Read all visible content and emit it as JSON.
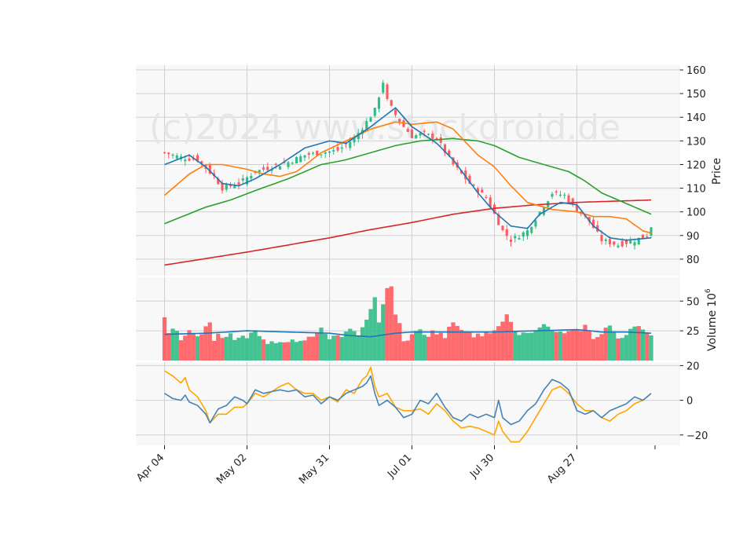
{
  "chart_data": {
    "type": "candlestick",
    "watermark": "(c)2024 www.stockdroid.de",
    "colors": {
      "up": "#2ebd85",
      "down": "#ff5a5f",
      "ma_short": "#1f77b4",
      "ma_mid": "#ff7f0e",
      "ma_long": "#2ca02c",
      "ma_200": "#d62728",
      "vol_ma": "#1f77b4",
      "osc1": "#4682b4",
      "osc2": "#ffa500"
    },
    "x_tick_labels": [
      "Apr 04",
      "May 02",
      "May 31",
      "Jul 01",
      "Jul 30",
      "Aug 27"
    ],
    "x_tick_index": [
      0,
      20,
      40,
      60,
      80,
      100
    ],
    "n_bars": 119,
    "price_panel": {
      "ylabel": "Price",
      "ylim": [
        73,
        162
      ],
      "yticks": [
        80,
        90,
        100,
        110,
        120,
        130,
        140,
        150,
        160
      ],
      "close_anchors": [
        [
          0,
          125
        ],
        [
          4,
          123
        ],
        [
          8,
          122
        ],
        [
          12,
          115
        ],
        [
          14,
          110
        ],
        [
          18,
          112
        ],
        [
          22,
          117
        ],
        [
          26,
          119
        ],
        [
          30,
          121
        ],
        [
          34,
          124
        ],
        [
          38,
          125
        ],
        [
          42,
          126
        ],
        [
          46,
          131
        ],
        [
          49,
          138
        ],
        [
          51,
          143
        ],
        [
          53,
          155
        ],
        [
          54,
          147
        ],
        [
          56,
          141
        ],
        [
          58,
          136
        ],
        [
          60,
          132
        ],
        [
          63,
          133
        ],
        [
          66,
          131
        ],
        [
          70,
          120
        ],
        [
          74,
          112
        ],
        [
          78,
          106
        ],
        [
          82,
          92
        ],
        [
          84,
          88
        ],
        [
          88,
          92
        ],
        [
          91,
          100
        ],
        [
          94,
          108
        ],
        [
          97,
          107
        ],
        [
          100,
          101
        ],
        [
          103,
          96
        ],
        [
          106,
          88
        ],
        [
          110,
          86
        ],
        [
          114,
          88
        ],
        [
          117,
          90
        ],
        [
          118,
          94
        ]
      ],
      "ma_short": [
        [
          0,
          120
        ],
        [
          6,
          124
        ],
        [
          10,
          119
        ],
        [
          14,
          112
        ],
        [
          18,
          111
        ],
        [
          22,
          114
        ],
        [
          28,
          120
        ],
        [
          34,
          127
        ],
        [
          40,
          130
        ],
        [
          44,
          129
        ],
        [
          50,
          136
        ],
        [
          56,
          144
        ],
        [
          60,
          136
        ],
        [
          66,
          129
        ],
        [
          70,
          122
        ],
        [
          76,
          108
        ],
        [
          80,
          100
        ],
        [
          84,
          94
        ],
        [
          88,
          93
        ],
        [
          91,
          99
        ],
        [
          96,
          104
        ],
        [
          100,
          103
        ],
        [
          104,
          94
        ],
        [
          108,
          89
        ],
        [
          112,
          88
        ],
        [
          118,
          89
        ]
      ],
      "ma_mid": [
        [
          0,
          107
        ],
        [
          6,
          116
        ],
        [
          10,
          120
        ],
        [
          14,
          120
        ],
        [
          20,
          118
        ],
        [
          24,
          116
        ],
        [
          28,
          115
        ],
        [
          32,
          117
        ],
        [
          38,
          125
        ],
        [
          44,
          130
        ],
        [
          50,
          135
        ],
        [
          56,
          138
        ],
        [
          60,
          137
        ],
        [
          66,
          138
        ],
        [
          70,
          135
        ],
        [
          76,
          124
        ],
        [
          80,
          119
        ],
        [
          84,
          111
        ],
        [
          88,
          104
        ],
        [
          94,
          101
        ],
        [
          100,
          100
        ],
        [
          104,
          98
        ],
        [
          108,
          98
        ],
        [
          112,
          97
        ],
        [
          116,
          92
        ],
        [
          118,
          91
        ]
      ],
      "ma_long": [
        [
          0,
          95
        ],
        [
          10,
          102
        ],
        [
          16,
          105
        ],
        [
          22,
          109
        ],
        [
          30,
          114
        ],
        [
          38,
          120
        ],
        [
          44,
          122
        ],
        [
          50,
          125
        ],
        [
          56,
          128
        ],
        [
          62,
          130
        ],
        [
          70,
          131
        ],
        [
          76,
          130
        ],
        [
          80,
          128
        ],
        [
          86,
          123
        ],
        [
          92,
          120
        ],
        [
          98,
          117
        ],
        [
          102,
          113
        ],
        [
          106,
          108
        ],
        [
          110,
          105
        ],
        [
          118,
          99
        ]
      ],
      "ma_200": [
        [
          0,
          77.5
        ],
        [
          20,
          83
        ],
        [
          40,
          89
        ],
        [
          50,
          92.5
        ],
        [
          60,
          95.5
        ],
        [
          70,
          99
        ],
        [
          80,
          101.5
        ],
        [
          90,
          103
        ],
        [
          100,
          104
        ],
        [
          118,
          105
        ]
      ]
    },
    "volume_panel": {
      "ylabel": "Volume",
      "ylabel_exp": "10",
      "ylabel_exp_sup": "6",
      "ylim": [
        0,
        70
      ],
      "yticks": [
        25,
        50
      ],
      "anchors": [
        [
          0,
          36
        ],
        [
          1,
          22
        ],
        [
          2,
          28
        ],
        [
          4,
          20
        ],
        [
          6,
          24
        ],
        [
          8,
          18
        ],
        [
          10,
          30
        ],
        [
          11,
          33
        ],
        [
          12,
          18
        ],
        [
          14,
          22
        ],
        [
          18,
          18
        ],
        [
          20,
          20
        ],
        [
          22,
          24
        ],
        [
          24,
          16
        ],
        [
          28,
          17
        ],
        [
          32,
          18
        ],
        [
          36,
          20
        ],
        [
          38,
          25
        ],
        [
          40,
          20
        ],
        [
          43,
          22
        ],
        [
          45,
          25
        ],
        [
          47,
          20
        ],
        [
          49,
          33
        ],
        [
          50,
          41
        ],
        [
          51,
          52
        ],
        [
          52,
          35
        ],
        [
          54,
          58
        ],
        [
          55,
          65
        ],
        [
          56,
          40
        ],
        [
          58,
          18
        ],
        [
          60,
          20
        ],
        [
          62,
          26
        ],
        [
          64,
          22
        ],
        [
          66,
          25
        ],
        [
          68,
          20
        ],
        [
          70,
          32
        ],
        [
          72,
          28
        ],
        [
          74,
          25
        ],
        [
          76,
          20
        ],
        [
          78,
          22
        ],
        [
          80,
          28
        ],
        [
          82,
          35
        ],
        [
          83,
          38
        ],
        [
          84,
          30
        ],
        [
          86,
          22
        ],
        [
          90,
          22
        ],
        [
          92,
          28
        ],
        [
          96,
          24
        ],
        [
          98,
          26
        ],
        [
          100,
          24
        ],
        [
          102,
          30
        ],
        [
          104,
          20
        ],
        [
          106,
          22
        ],
        [
          108,
          30
        ],
        [
          110,
          20
        ],
        [
          112,
          22
        ],
        [
          114,
          26
        ],
        [
          116,
          28
        ],
        [
          118,
          24
        ]
      ],
      "ma": [
        [
          0,
          22
        ],
        [
          10,
          23
        ],
        [
          20,
          25
        ],
        [
          30,
          24
        ],
        [
          40,
          23
        ],
        [
          45,
          21
        ],
        [
          50,
          20
        ],
        [
          56,
          23
        ],
        [
          60,
          24
        ],
        [
          70,
          24
        ],
        [
          80,
          24
        ],
        [
          90,
          25
        ],
        [
          100,
          26
        ],
        [
          106,
          24
        ],
        [
          112,
          24
        ],
        [
          118,
          23
        ]
      ]
    },
    "osc_panel": {
      "ylim": [
        -26,
        22
      ],
      "yticks": [
        -20,
        0,
        20
      ],
      "line1": [
        [
          0,
          4
        ],
        [
          2,
          1
        ],
        [
          4,
          0
        ],
        [
          5,
          3
        ],
        [
          6,
          -1
        ],
        [
          8,
          -3
        ],
        [
          10,
          -8
        ],
        [
          11,
          -13
        ],
        [
          13,
          -5
        ],
        [
          15,
          -3
        ],
        [
          17,
          2
        ],
        [
          19,
          0
        ],
        [
          20,
          -2
        ],
        [
          22,
          6
        ],
        [
          24,
          4
        ],
        [
          26,
          5
        ],
        [
          28,
          6
        ],
        [
          30,
          5
        ],
        [
          32,
          6
        ],
        [
          34,
          2
        ],
        [
          36,
          3
        ],
        [
          38,
          -2
        ],
        [
          40,
          2
        ],
        [
          42,
          0
        ],
        [
          44,
          4
        ],
        [
          46,
          6
        ],
        [
          48,
          8
        ],
        [
          49,
          10
        ],
        [
          50,
          14
        ],
        [
          51,
          4
        ],
        [
          52,
          -3
        ],
        [
          54,
          0
        ],
        [
          56,
          -4
        ],
        [
          58,
          -10
        ],
        [
          60,
          -8
        ],
        [
          62,
          0
        ],
        [
          64,
          -2
        ],
        [
          66,
          4
        ],
        [
          68,
          -4
        ],
        [
          70,
          -10
        ],
        [
          72,
          -12
        ],
        [
          74,
          -8
        ],
        [
          76,
          -10
        ],
        [
          78,
          -8
        ],
        [
          80,
          -10
        ],
        [
          81,
          0
        ],
        [
          82,
          -10
        ],
        [
          84,
          -14
        ],
        [
          86,
          -12
        ],
        [
          88,
          -6
        ],
        [
          90,
          -2
        ],
        [
          92,
          6
        ],
        [
          94,
          12
        ],
        [
          96,
          10
        ],
        [
          98,
          6
        ],
        [
          100,
          -6
        ],
        [
          102,
          -8
        ],
        [
          104,
          -6
        ],
        [
          106,
          -10
        ],
        [
          108,
          -6
        ],
        [
          110,
          -4
        ],
        [
          112,
          -2
        ],
        [
          114,
          2
        ],
        [
          116,
          0
        ],
        [
          118,
          4
        ]
      ],
      "line2": [
        [
          0,
          17
        ],
        [
          2,
          14
        ],
        [
          4,
          10
        ],
        [
          5,
          13
        ],
        [
          6,
          6
        ],
        [
          8,
          2
        ],
        [
          10,
          -6
        ],
        [
          11,
          -13
        ],
        [
          13,
          -8
        ],
        [
          15,
          -8
        ],
        [
          17,
          -4
        ],
        [
          19,
          -4
        ],
        [
          20,
          -2
        ],
        [
          22,
          4
        ],
        [
          24,
          2
        ],
        [
          26,
          5
        ],
        [
          28,
          8
        ],
        [
          30,
          10
        ],
        [
          32,
          6
        ],
        [
          34,
          4
        ],
        [
          36,
          4
        ],
        [
          38,
          0
        ],
        [
          40,
          2
        ],
        [
          42,
          -1
        ],
        [
          44,
          6
        ],
        [
          46,
          4
        ],
        [
          48,
          12
        ],
        [
          49,
          14
        ],
        [
          50,
          19
        ],
        [
          51,
          8
        ],
        [
          52,
          2
        ],
        [
          54,
          4
        ],
        [
          56,
          -4
        ],
        [
          58,
          -6
        ],
        [
          60,
          -6
        ],
        [
          62,
          -5
        ],
        [
          64,
          -8
        ],
        [
          66,
          -2
        ],
        [
          68,
          -6
        ],
        [
          70,
          -12
        ],
        [
          72,
          -16
        ],
        [
          74,
          -15
        ],
        [
          76,
          -16
        ],
        [
          78,
          -18
        ],
        [
          80,
          -20
        ],
        [
          81,
          -12
        ],
        [
          82,
          -18
        ],
        [
          84,
          -24
        ],
        [
          86,
          -24
        ],
        [
          88,
          -18
        ],
        [
          90,
          -10
        ],
        [
          92,
          -2
        ],
        [
          94,
          6
        ],
        [
          96,
          8
        ],
        [
          98,
          4
        ],
        [
          100,
          -2
        ],
        [
          102,
          -6
        ],
        [
          104,
          -6
        ],
        [
          106,
          -10
        ],
        [
          108,
          -12
        ],
        [
          110,
          -8
        ],
        [
          112,
          -6
        ],
        [
          114,
          -2
        ],
        [
          116,
          0
        ],
        [
          118,
          4
        ]
      ]
    }
  }
}
